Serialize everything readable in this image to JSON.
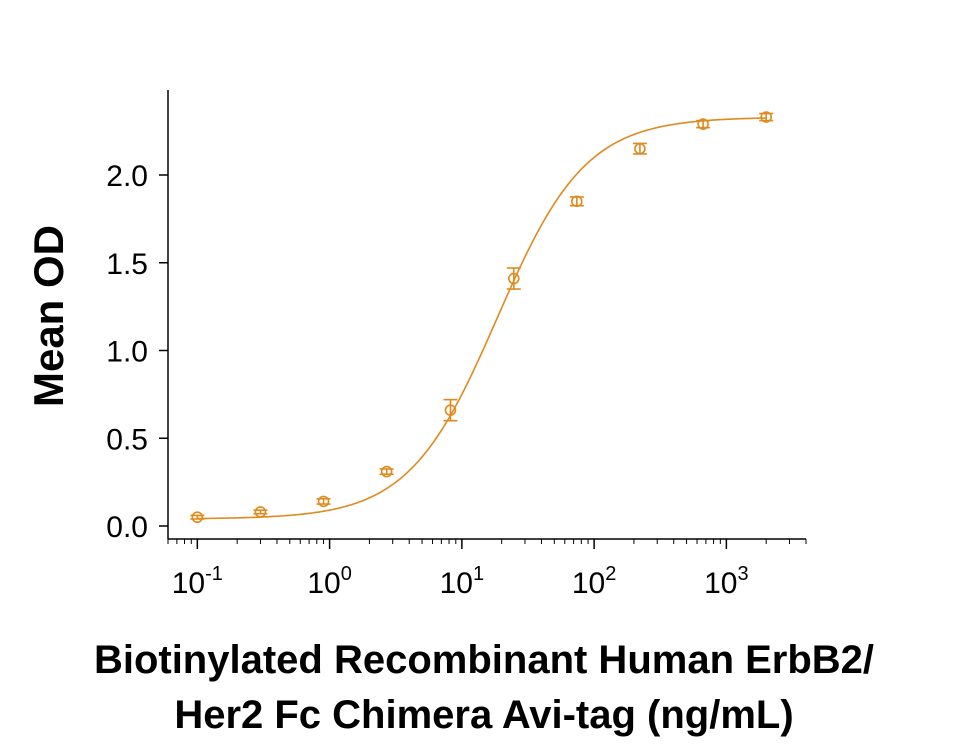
{
  "chart_data": {
    "type": "scatter",
    "title": "",
    "ylabel": "Mean OD",
    "xlabel_lines": [
      "Biotinylated Recombinant Human ErbB2/",
      "Her2 Fc Chimera Avi-tag (ng/mL)"
    ],
    "xscale": "log",
    "xlim": [
      0.06,
      4000
    ],
    "ylim": [
      0.0,
      2.4
    ],
    "x_ticks": [
      {
        "base": "10",
        "exp": "-1",
        "value": 0.1
      },
      {
        "base": "10",
        "exp": "0",
        "value": 1
      },
      {
        "base": "10",
        "exp": "1",
        "value": 10
      },
      {
        "base": "10",
        "exp": "2",
        "value": 100
      },
      {
        "base": "10",
        "exp": "3",
        "value": 1000
      }
    ],
    "y_ticks": [
      {
        "label": "0.0",
        "value": 0.0
      },
      {
        "label": "0.5",
        "value": 0.5
      },
      {
        "label": "1.0",
        "value": 1.0
      },
      {
        "label": "1.5",
        "value": 1.5
      },
      {
        "label": "2.0",
        "value": 2.0
      }
    ],
    "grid": false,
    "color": "#E08A1E",
    "series": [
      {
        "x": [
          0.1,
          0.3,
          0.9,
          2.7,
          8.2,
          24.7,
          74,
          222,
          667,
          2000
        ],
        "y": [
          0.05,
          0.08,
          0.14,
          0.31,
          0.66,
          1.41,
          1.85,
          2.15,
          2.29,
          2.33
        ],
        "error": [
          0.01,
          0.01,
          0.015,
          0.015,
          0.06,
          0.06,
          0.025,
          0.03,
          0.02,
          0.02
        ],
        "fit": {
          "model": "4PL",
          "bottom": 0.04,
          "top": 2.33,
          "ec50": 18.5,
          "hill": 1.3
        }
      }
    ]
  }
}
